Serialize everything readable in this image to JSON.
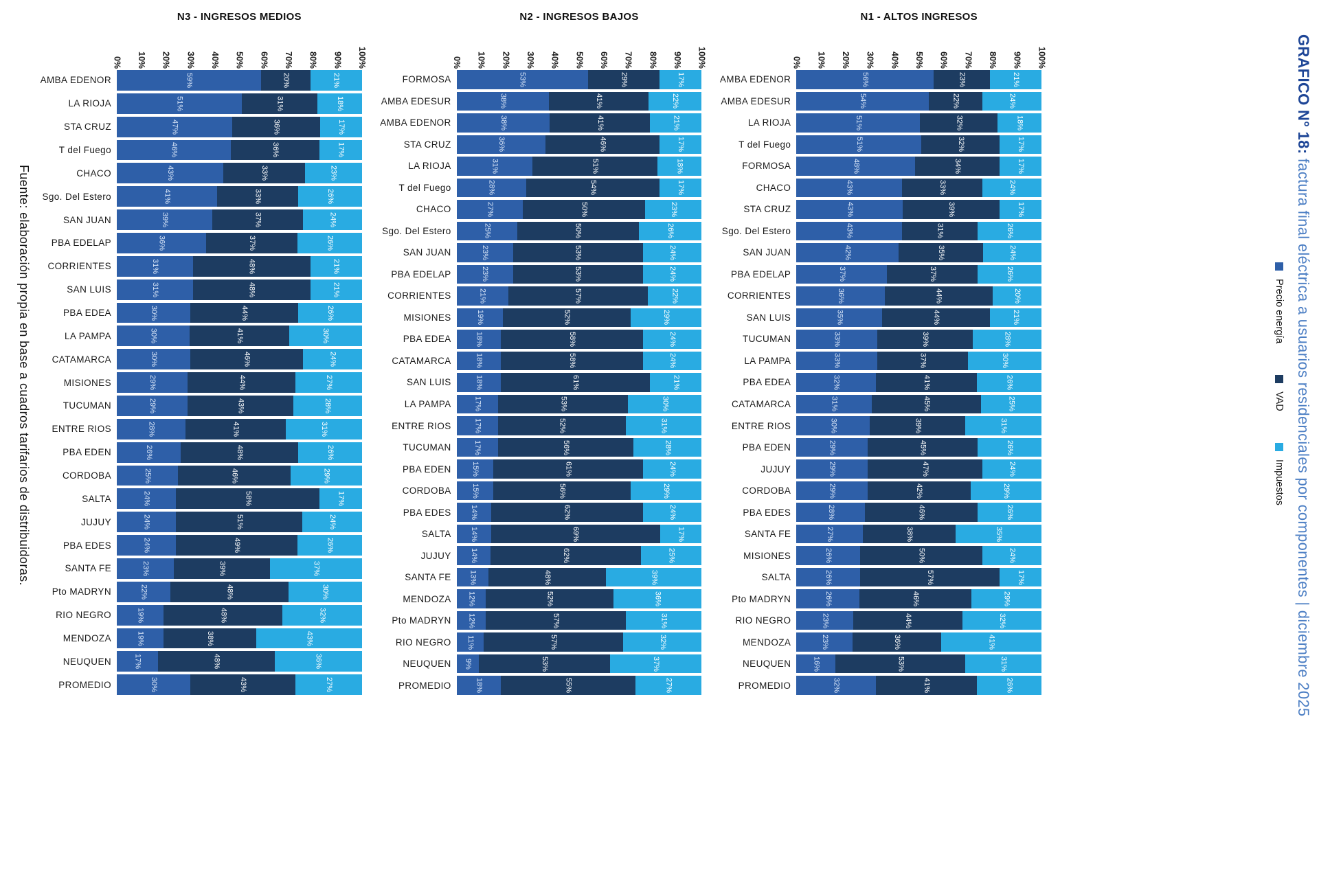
{
  "source_note": "Fuente: elaboración propia en base a cuadros tarifarios de distribuidoras.",
  "title": {
    "prefix": "GRAFICO N° 18:",
    "rest": " factura final eléctrica a usuarios residenciales por componentes | diciembre 2025"
  },
  "legend": {
    "position": "right-rotated",
    "items": [
      {
        "label": "Precio energía",
        "color": "#2E5FA8"
      },
      {
        "label": "VAD",
        "color": "#1D3C61"
      },
      {
        "label": "Impuestos",
        "color": "#29ABE2"
      }
    ]
  },
  "axis": {
    "ticks": [
      "0%",
      "10%",
      "20%",
      "30%",
      "40%",
      "50%",
      "60%",
      "70%",
      "80%",
      "90%",
      "100%"
    ]
  },
  "chart_data": [
    {
      "type": "bar",
      "orientation": "horizontal",
      "stacked": true,
      "title": "N3 - INGRESOS MEDIOS",
      "xlim": [
        0,
        100
      ],
      "value_unit": "%",
      "categories": [
        "AMBA EDENOR",
        "LA RIOJA",
        "STA CRUZ",
        "T del Fuego",
        "CHACO",
        "Sgo. Del Estero",
        "SAN JUAN",
        "PBA EDELAP",
        "CORRIENTES",
        "SAN LUIS",
        "PBA EDEA",
        "LA PAMPA",
        "CATAMARCA",
        "MISIONES",
        "TUCUMAN",
        "ENTRE RIOS",
        "PBA EDEN",
        "CORDOBA",
        "SALTA",
        "JUJUY",
        "PBA EDES",
        "SANTA FE",
        "Pto MADRYN",
        "RIO NEGRO",
        "MENDOZA",
        "NEUQUEN",
        "PROMEDIO"
      ],
      "series": [
        {
          "name": "Precio energía",
          "values": [
            59,
            51,
            47,
            46,
            43,
            41,
            39,
            36,
            31,
            31,
            30,
            30,
            30,
            29,
            29,
            28,
            26,
            25,
            24,
            24,
            24,
            23,
            22,
            19,
            19,
            17,
            30
          ]
        },
        {
          "name": "VAD",
          "values": [
            20,
            31,
            36,
            36,
            33,
            33,
            37,
            37,
            48,
            48,
            44,
            41,
            46,
            44,
            43,
            41,
            48,
            46,
            58,
            51,
            49,
            39,
            48,
            48,
            38,
            48,
            43
          ]
        },
        {
          "name": "Impuestos",
          "values": [
            21,
            18,
            17,
            17,
            23,
            26,
            24,
            26,
            21,
            21,
            26,
            30,
            24,
            27,
            28,
            31,
            26,
            29,
            17,
            24,
            26,
            37,
            30,
            32,
            43,
            36,
            27
          ]
        }
      ]
    },
    {
      "type": "bar",
      "orientation": "horizontal",
      "stacked": true,
      "title": "N2 - INGRESOS BAJOS",
      "xlim": [
        0,
        100
      ],
      "value_unit": "%",
      "categories": [
        "FORMOSA",
        "AMBA EDESUR",
        "AMBA EDENOR",
        "STA CRUZ",
        "LA RIOJA",
        "T del Fuego",
        "CHACO",
        "Sgo. Del Estero",
        "SAN JUAN",
        "PBA EDELAP",
        "CORRIENTES",
        "MISIONES",
        "PBA EDEA",
        "CATAMARCA",
        "SAN LUIS",
        "LA PAMPA",
        "ENTRE RIOS",
        "TUCUMAN",
        "PBA EDEN",
        "CORDOBA",
        "PBA EDES",
        "SALTA",
        "JUJUY",
        "SANTA FE",
        "MENDOZA",
        "Pto MADRYN",
        "RIO NEGRO",
        "NEUQUEN",
        "PROMEDIO"
      ],
      "series": [
        {
          "name": "Precio energía",
          "values": [
            53,
            38,
            38,
            36,
            31,
            28,
            27,
            25,
            23,
            23,
            21,
            19,
            18,
            18,
            18,
            17,
            17,
            17,
            15,
            15,
            14,
            14,
            14,
            13,
            12,
            12,
            11,
            9,
            18
          ]
        },
        {
          "name": "VAD",
          "values": [
            29,
            41,
            41,
            46,
            51,
            54,
            50,
            50,
            53,
            53,
            57,
            52,
            58,
            58,
            61,
            53,
            52,
            56,
            61,
            56,
            62,
            69,
            62,
            48,
            52,
            57,
            57,
            53,
            55
          ]
        },
        {
          "name": "Impuestos",
          "values": [
            17,
            22,
            21,
            17,
            18,
            17,
            23,
            26,
            24,
            24,
            22,
            29,
            24,
            24,
            21,
            30,
            31,
            28,
            24,
            29,
            24,
            17,
            25,
            39,
            36,
            31,
            32,
            37,
            27
          ]
        }
      ]
    },
    {
      "type": "bar",
      "orientation": "horizontal",
      "stacked": true,
      "title": "N1 - ALTOS INGRESOS",
      "xlim": [
        0,
        100
      ],
      "value_unit": "%",
      "categories": [
        "AMBA EDENOR",
        "AMBA EDESUR",
        "LA RIOJA",
        "T del Fuego",
        "FORMOSA",
        "CHACO",
        "STA CRUZ",
        "Sgo. Del Estero",
        "SAN JUAN",
        "PBA EDELAP",
        "CORRIENTES",
        "SAN LUIS",
        "TUCUMAN",
        "LA PAMPA",
        "PBA EDEA",
        "CATAMARCA",
        "ENTRE RIOS",
        "PBA EDEN",
        "JUJUY",
        "CORDOBA",
        "PBA EDES",
        "SANTA FE",
        "MISIONES",
        "SALTA",
        "Pto MADRYN",
        "RIO NEGRO",
        "MENDOZA",
        "NEUQUEN",
        "PROMEDIO"
      ],
      "series": [
        {
          "name": "Precio energía",
          "values": [
            56,
            54,
            51,
            51,
            48,
            43,
            43,
            43,
            42,
            37,
            36,
            35,
            33,
            33,
            32,
            31,
            30,
            29,
            29,
            29,
            28,
            27,
            26,
            26,
            26,
            23,
            23,
            16,
            32
          ]
        },
        {
          "name": "VAD",
          "values": [
            23,
            22,
            32,
            32,
            34,
            33,
            39,
            31,
            35,
            37,
            44,
            44,
            39,
            37,
            41,
            45,
            39,
            45,
            47,
            42,
            46,
            38,
            50,
            57,
            46,
            44,
            36,
            53,
            41
          ]
        },
        {
          "name": "Impuestos",
          "values": [
            21,
            24,
            18,
            17,
            17,
            24,
            17,
            26,
            24,
            26,
            20,
            21,
            28,
            30,
            26,
            25,
            31,
            26,
            24,
            29,
            26,
            35,
            24,
            17,
            29,
            32,
            41,
            31,
            26
          ]
        }
      ]
    }
  ]
}
